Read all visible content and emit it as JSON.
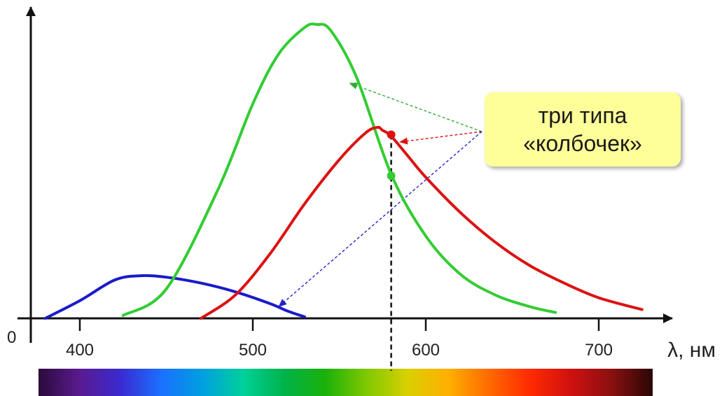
{
  "chart_data": {
    "type": "line",
    "x_unit_label": "λ, нм",
    "origin_label": "0",
    "x_ticks": [
      400,
      500,
      600,
      700
    ],
    "xlim": [
      372,
      735
    ],
    "ylim": [
      0,
      1.0
    ],
    "series": [
      {
        "color": "#1a1acc",
        "x": [
          380,
          400,
          420,
          435,
          450,
          470,
          490,
          510,
          520,
          530
        ],
        "y": [
          0.0,
          0.06,
          0.13,
          0.145,
          0.14,
          0.12,
          0.09,
          0.05,
          0.025,
          0.005
        ]
      },
      {
        "color": "#33cc33",
        "x": [
          425,
          450,
          480,
          500,
          515,
          530,
          537,
          545,
          560,
          580,
          600,
          620,
          640,
          660,
          675
        ],
        "y": [
          0.01,
          0.1,
          0.44,
          0.73,
          0.9,
          0.99,
          1.0,
          0.98,
          0.82,
          0.49,
          0.28,
          0.15,
          0.08,
          0.04,
          0.02
        ]
      },
      {
        "color": "#dd1111",
        "x": [
          470,
          490,
          510,
          530,
          550,
          565,
          572,
          575,
          580,
          590,
          600,
          620,
          640,
          660,
          680,
          700,
          725
        ],
        "y": [
          0.0,
          0.08,
          0.22,
          0.39,
          0.54,
          0.63,
          0.65,
          0.64,
          0.62,
          0.55,
          0.48,
          0.36,
          0.26,
          0.18,
          0.12,
          0.07,
          0.03
        ]
      }
    ],
    "marker_x": 580,
    "markers": [
      {
        "series": 2,
        "x": 580,
        "y": 0.625,
        "color": "#dd1111"
      },
      {
        "series": 1,
        "x": 580,
        "y": 0.485,
        "color": "#33cc33"
      }
    ],
    "annotation": {
      "lines": [
        "три типа",
        "«колбочек»"
      ],
      "background": "#ffff99",
      "arrows": [
        {
          "color": "#33aa33",
          "target_series": 1,
          "target_x": 556,
          "target_y": 0.8
        },
        {
          "color": "#dd1111",
          "target_series": 2,
          "target_x": 585,
          "target_y": 0.6
        },
        {
          "color": "#2222cc",
          "target_series": 0,
          "target_x": 515,
          "target_y": 0.04
        }
      ]
    },
    "spectrum_colors": [
      "#2a0a3a",
      "#5a1a8f",
      "#3a2ad0",
      "#1a70ff",
      "#00a0e0",
      "#00d09a",
      "#00b34a",
      "#1ab10a",
      "#7ec800",
      "#d8d000",
      "#ffb000",
      "#ff6a00",
      "#ff2a00",
      "#d01010",
      "#8a1010",
      "#2a0606"
    ]
  }
}
